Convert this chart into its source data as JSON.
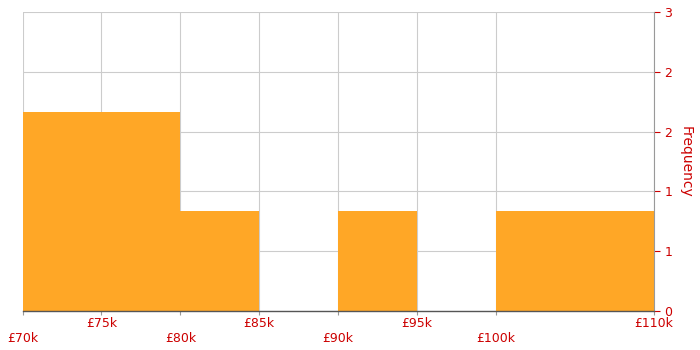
{
  "bin_edges": [
    70000,
    80000,
    85000,
    90000,
    95000,
    100000,
    110000
  ],
  "frequencies": [
    2,
    1,
    0,
    1,
    0,
    1
  ],
  "bar_color": "#FFA726",
  "ylabel": "Frequency",
  "ylim": [
    0,
    3
  ],
  "ytick_positions": [
    0,
    0.6,
    1.2,
    1.8,
    2.4,
    3.0
  ],
  "ytick_labels": [
    "0",
    "1",
    "1",
    "2",
    "2",
    "3"
  ],
  "xtick_positions": [
    70000,
    75000,
    80000,
    85000,
    90000,
    95000,
    100000,
    110000
  ],
  "xtick_labels": [
    "£70k",
    "£75k",
    "£80k",
    "£85k",
    "£90k",
    "£95k",
    "£100k",
    "£110k"
  ],
  "xtick_row": [
    0,
    1,
    0,
    1,
    0,
    1,
    0,
    1
  ],
  "grid_color": "#cccccc",
  "background_color": "#ffffff",
  "ylabel_color": "#cc0000",
  "ytick_color": "#cc0000",
  "xtick_color": "#cc0000",
  "figsize": [
    7.0,
    3.5
  ],
  "dpi": 100
}
